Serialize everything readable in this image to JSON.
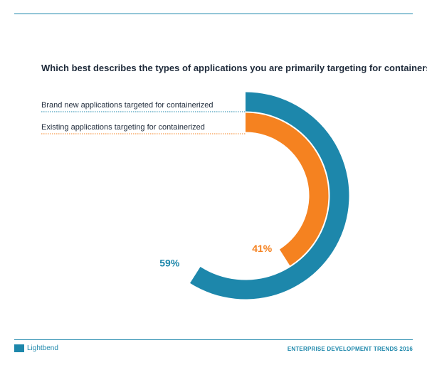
{
  "header": {
    "question": "Which best describes the types of applications you are primarily targeting for containers?"
  },
  "chart_data": {
    "type": "pie",
    "title": "Which best describes the types of applications you are primarily targeting for containers?",
    "categories": [
      "Brand new applications targeted for containerized",
      "Existing applications targeting for containerized"
    ],
    "values": [
      59,
      41
    ],
    "data_labels": [
      "59%",
      "41%"
    ],
    "colors": [
      "#1d87ab",
      "#f58220"
    ],
    "legend_position": "left"
  },
  "footer": {
    "brand": "Lightbend",
    "report": "ENTERPRISE DEVELOPMENT TRENDS 2016"
  }
}
